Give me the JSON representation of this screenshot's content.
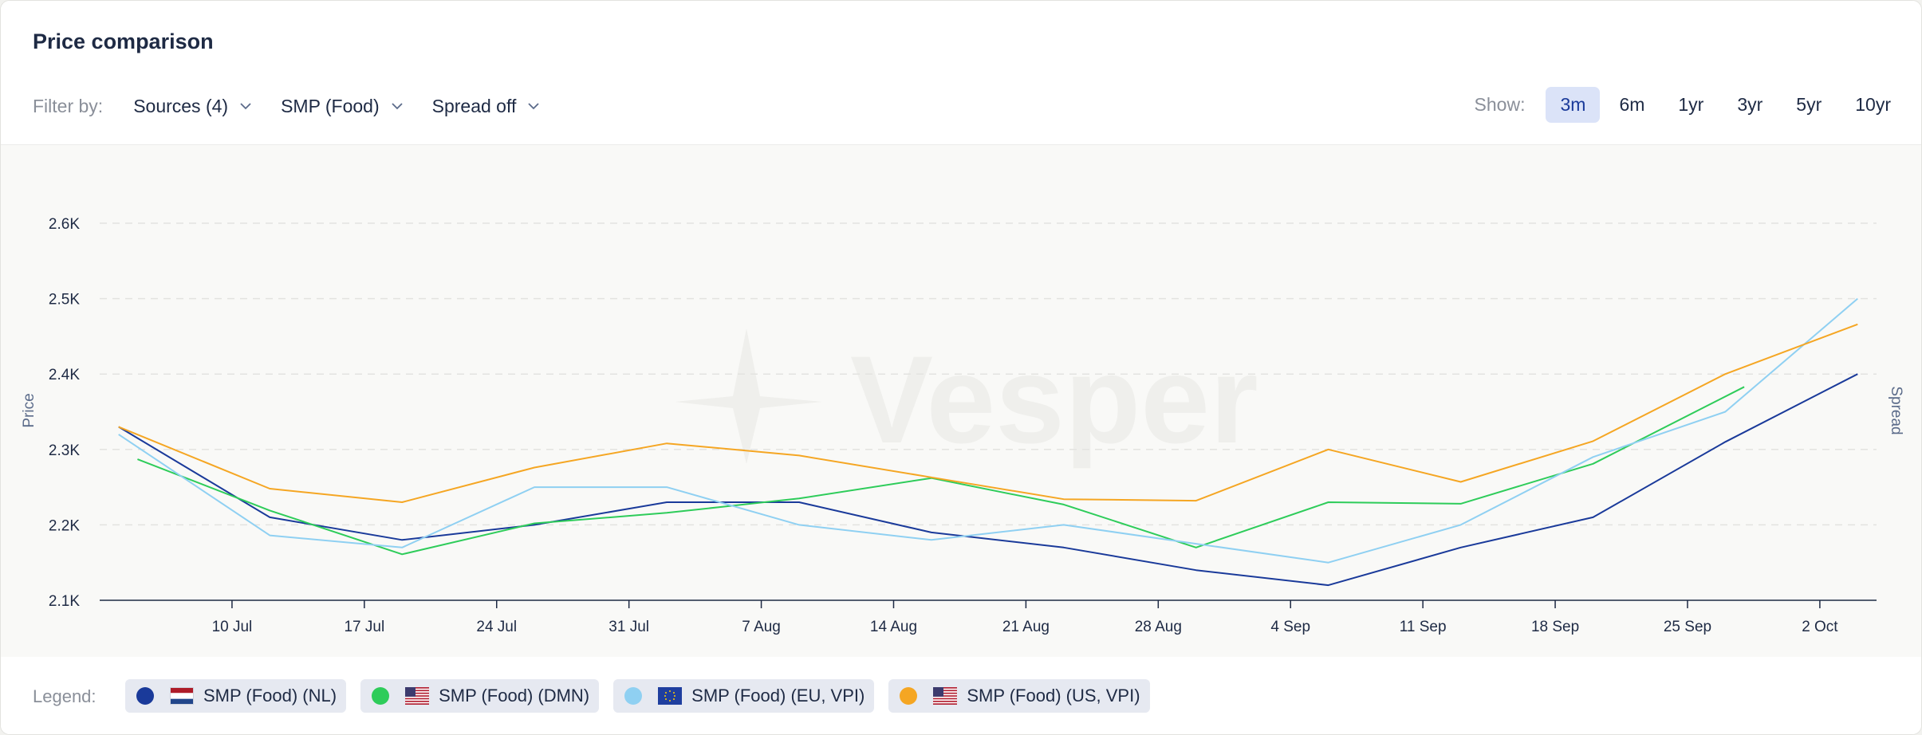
{
  "header": {
    "title": "Price comparison"
  },
  "filters": {
    "label": "Filter by:",
    "items": [
      {
        "name": "filter-sources",
        "label": "Sources (4)"
      },
      {
        "name": "filter-product",
        "label": "SMP (Food)"
      },
      {
        "name": "filter-spread",
        "label": "Spread off"
      }
    ]
  },
  "show": {
    "label": "Show:",
    "ranges": [
      "3m",
      "6m",
      "1yr",
      "3yr",
      "5yr",
      "10yr"
    ],
    "active": "3m"
  },
  "watermark": "Vesper",
  "legend": {
    "label": "Legend:",
    "items": [
      {
        "label": "SMP (Food) (NL)",
        "color": "#1a3a9a",
        "flag": "nl"
      },
      {
        "label": "SMP (Food) (DMN)",
        "color": "#2ecc5a",
        "flag": "us"
      },
      {
        "label": "SMP (Food) (EU, VPI)",
        "color": "#8fd0f2",
        "flag": "eu"
      },
      {
        "label": "SMP (Food) (US, VPI)",
        "color": "#f5a623",
        "flag": "us"
      }
    ]
  },
  "chart_data": {
    "type": "line",
    "ylabel": "Price",
    "y2label": "Spread",
    "ylim": [
      2100,
      2600
    ],
    "y_ticks": [
      2100,
      2200,
      2300,
      2400,
      2500,
      2600
    ],
    "y_tick_labels": [
      "2.1K",
      "2.2K",
      "2.3K",
      "2.4K",
      "2.5K",
      "2.6K"
    ],
    "x_ticks": [
      "2024-07-10",
      "2024-07-17",
      "2024-07-24",
      "2024-07-31",
      "2024-08-07",
      "2024-08-14",
      "2024-08-21",
      "2024-08-28",
      "2024-09-04",
      "2024-09-11",
      "2024-09-18",
      "2024-09-25",
      "2024-10-02"
    ],
    "x_tick_labels": [
      "10 Jul",
      "17 Jul",
      "24 Jul",
      "31 Jul",
      "7 Aug",
      "14 Aug",
      "21 Aug",
      "28 Aug",
      "4 Sep",
      "11 Sep",
      "18 Sep",
      "25 Sep",
      "2 Oct"
    ],
    "xlim": [
      "2024-07-03",
      "2024-10-05"
    ],
    "grid": "horizontal-dashed",
    "legend_position": "bottom",
    "series": [
      {
        "name": "SMP (Food) (NL)",
        "color": "#1a3a9a",
        "x": [
          "2024-07-04",
          "2024-07-12",
          "2024-07-19",
          "2024-07-26",
          "2024-08-02",
          "2024-08-09",
          "2024-08-16",
          "2024-08-23",
          "2024-08-30",
          "2024-09-06",
          "2024-09-13",
          "2024-09-20",
          "2024-09-27",
          "2024-10-04"
        ],
        "y": [
          2330,
          2210,
          2180,
          2200,
          2230,
          2230,
          2190,
          2170,
          2140,
          2120,
          2170,
          2210,
          2310,
          2400
        ]
      },
      {
        "name": "SMP (Food) (DMN)",
        "color": "#2ecc5a",
        "x": [
          "2024-07-05",
          "2024-07-12",
          "2024-07-19",
          "2024-07-26",
          "2024-08-02",
          "2024-08-09",
          "2024-08-16",
          "2024-08-23",
          "2024-08-30",
          "2024-09-06",
          "2024-09-13",
          "2024-09-20",
          "2024-09-28"
        ],
        "y": [
          2287,
          2219,
          2161,
          2202,
          2216,
          2235,
          2262,
          2227,
          2170,
          2230,
          2228,
          2281,
          2383
        ]
      },
      {
        "name": "SMP (Food) (EU, VPI)",
        "color": "#8fd0f2",
        "x": [
          "2024-07-04",
          "2024-07-12",
          "2024-07-19",
          "2024-07-26",
          "2024-08-02",
          "2024-08-09",
          "2024-08-16",
          "2024-08-23",
          "2024-08-30",
          "2024-09-06",
          "2024-09-13",
          "2024-09-20",
          "2024-09-27",
          "2024-10-04"
        ],
        "y": [
          2320,
          2186,
          2170,
          2250,
          2250,
          2200,
          2180,
          2200,
          2175,
          2150,
          2200,
          2290,
          2350,
          2500
        ]
      },
      {
        "name": "SMP (Food) (US, VPI)",
        "color": "#f5a623",
        "x": [
          "2024-07-04",
          "2024-07-12",
          "2024-07-19",
          "2024-07-26",
          "2024-08-02",
          "2024-08-09",
          "2024-08-16",
          "2024-08-23",
          "2024-08-30",
          "2024-09-06",
          "2024-09-13",
          "2024-09-20",
          "2024-09-27",
          "2024-10-04"
        ],
        "y": [
          2330,
          2248,
          2230,
          2276,
          2308,
          2292,
          2263,
          2234,
          2232,
          2300,
          2257,
          2311,
          2400,
          2466
        ]
      }
    ]
  }
}
